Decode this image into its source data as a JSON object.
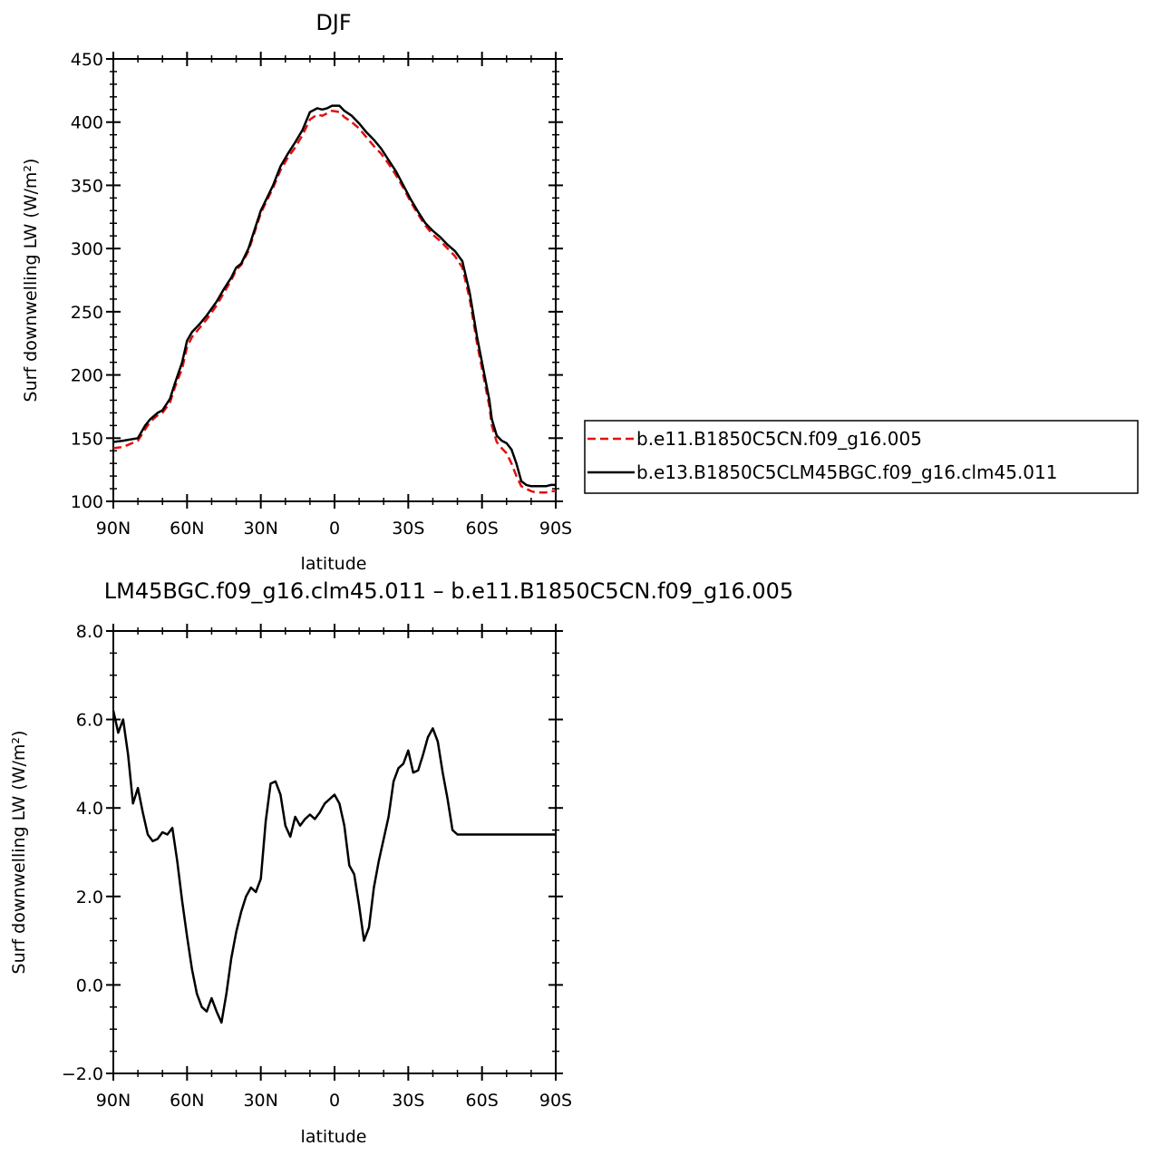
{
  "chart_data": [
    {
      "type": "line",
      "title": "DJF",
      "xlabel": "latitude",
      "ylabel": "Surf downwelling LW (W/m²)",
      "xlim": [
        90,
        -90
      ],
      "ylim": [
        100,
        450
      ],
      "yticks": [
        100,
        150,
        200,
        250,
        300,
        350,
        400,
        450
      ],
      "ytick_labels": [
        "100",
        "150",
        "200",
        "250",
        "300",
        "350",
        "400",
        "450"
      ],
      "xticks": [
        90,
        60,
        30,
        0,
        -30,
        -60,
        -90
      ],
      "xtick_labels": [
        "90N",
        "60N",
        "30N",
        "0",
        "30S",
        "60S",
        "90S"
      ],
      "legend_position": "right",
      "series": [
        {
          "name": "b.e11.B1850C5CN.f09_g16.005",
          "color": "#e01010",
          "dash": "dashed",
          "x": [
            90,
            86,
            80,
            77,
            75,
            72,
            70,
            67,
            65,
            62,
            60,
            58,
            55,
            52,
            48,
            45,
            42,
            40,
            38,
            35,
            33,
            30,
            28,
            25,
            22,
            19,
            16,
            13,
            10,
            7,
            5,
            3,
            1,
            -2,
            -4,
            -7,
            -10,
            -13,
            -16,
            -19,
            -22,
            -25,
            -28,
            -31,
            -34,
            -37,
            -40,
            -43,
            -46,
            -49,
            -52,
            -55,
            -58,
            -61,
            -63,
            -64,
            -66,
            -68,
            -70,
            -72,
            -74,
            -76,
            -78,
            -80,
            -82,
            -84,
            -86,
            -88,
            -90
          ],
          "values": [
            142,
            143,
            148,
            157,
            163,
            168,
            170,
            178,
            190,
            205,
            222,
            230,
            237,
            244,
            255,
            265,
            275,
            283,
            287,
            298,
            310,
            328,
            336,
            348,
            362,
            372,
            380,
            390,
            402,
            406,
            405,
            407,
            409,
            408,
            404,
            400,
            395,
            388,
            381,
            375,
            367,
            358,
            348,
            337,
            327,
            318,
            311,
            306,
            300,
            294,
            285,
            260,
            225,
            195,
            175,
            160,
            147,
            142,
            138,
            130,
            120,
            112,
            110,
            108,
            107,
            107,
            107,
            108,
            108
          ]
        },
        {
          "name": "b.e13.B1850C5CLM45BGC.f09_g16.clm45.011",
          "color": "#000000",
          "dash": "solid",
          "x": [
            90,
            86,
            80,
            77,
            75,
            72,
            70,
            67,
            65,
            62,
            60,
            58,
            55,
            52,
            48,
            45,
            42,
            40,
            38,
            35,
            33,
            30,
            28,
            25,
            22,
            19,
            16,
            13,
            10,
            7,
            5,
            3,
            1,
            -2,
            -4,
            -7,
            -10,
            -13,
            -16,
            -19,
            -22,
            -25,
            -28,
            -31,
            -34,
            -37,
            -40,
            -43,
            -46,
            -49,
            -52,
            -55,
            -58,
            -61,
            -63,
            -64,
            -66,
            -68,
            -70,
            -72,
            -74,
            -76,
            -78,
            -80,
            -82,
            -84,
            -86,
            -88,
            -90
          ],
          "values": [
            147,
            148,
            150,
            160,
            165,
            170,
            172,
            181,
            193,
            210,
            227,
            234,
            240,
            247,
            258,
            268,
            277,
            285,
            288,
            300,
            312,
            330,
            338,
            350,
            365,
            375,
            384,
            394,
            408,
            411,
            410,
            411,
            413,
            413,
            409,
            405,
            399,
            392,
            386,
            379,
            370,
            361,
            350,
            339,
            329,
            320,
            314,
            309,
            303,
            298,
            290,
            265,
            230,
            200,
            180,
            165,
            152,
            148,
            146,
            141,
            130,
            116,
            113,
            112,
            112,
            112,
            112,
            113,
            113
          ]
        }
      ]
    },
    {
      "type": "line",
      "title": "LM45BGC.f09_g16.clm45.011 – b.e11.B1850C5CN.f09_g16.005",
      "xlabel": "latitude",
      "ylabel": "Surf downwelling LW (W/m²)",
      "xlim": [
        90,
        -90
      ],
      "ylim": [
        -2.0,
        8.0
      ],
      "yticks": [
        -2.0,
        0.0,
        2.0,
        4.0,
        6.0,
        8.0
      ],
      "ytick_labels": [
        "−2.0",
        "0.0",
        "2.0",
        "4.0",
        "6.0",
        "8.0"
      ],
      "xticks": [
        90,
        60,
        30,
        0,
        -30,
        -60,
        -90
      ],
      "xtick_labels": [
        "90N",
        "60N",
        "30N",
        "0",
        "30S",
        "60S",
        "90S"
      ],
      "series": [
        {
          "name": "",
          "color": "#000000",
          "dash": "solid",
          "x": [
            90,
            88,
            86,
            84,
            82,
            80,
            78,
            76,
            74,
            72,
            70,
            68,
            66,
            64,
            62,
            60,
            58,
            56,
            54,
            52,
            50,
            48,
            46,
            44,
            42,
            40,
            38,
            36,
            34,
            32,
            30,
            28,
            26,
            24,
            22,
            20,
            18,
            16,
            14,
            12,
            10,
            8,
            6,
            4,
            2,
            0,
            -2,
            -4,
            -6,
            -8,
            -10,
            -12,
            -14,
            -16,
            -18,
            -20,
            -22,
            -24,
            -26,
            -28,
            -30,
            -32,
            -34,
            -36,
            -38,
            -40,
            -42,
            -44,
            -46,
            -48,
            -50,
            -52,
            -54,
            -56,
            -58,
            -60,
            -62,
            -64,
            -66,
            -68,
            -70,
            -72,
            -74,
            -76,
            -78,
            -80,
            -82,
            -84,
            -86,
            -88,
            -90
          ],
          "values": [
            6.2,
            5.7,
            6.0,
            5.2,
            4.1,
            4.45,
            3.9,
            3.4,
            3.25,
            3.3,
            3.45,
            3.4,
            3.55,
            2.8,
            1.9,
            1.1,
            0.35,
            -0.2,
            -0.5,
            -0.6,
            -0.3,
            -0.6,
            -0.85,
            -0.2,
            0.6,
            1.2,
            1.65,
            2.0,
            2.2,
            2.1,
            2.4,
            3.7,
            4.55,
            4.6,
            4.3,
            3.6,
            3.35,
            3.8,
            3.6,
            3.75,
            3.85,
            3.75,
            3.9,
            4.1,
            4.2,
            4.3,
            4.1,
            3.6,
            2.7,
            2.5,
            1.8,
            1.0,
            1.3,
            2.2,
            2.8,
            3.3,
            3.8,
            4.6,
            4.9,
            5.0,
            5.3,
            4.8,
            4.85,
            5.2,
            5.6,
            5.8,
            5.5,
            4.8,
            4.2,
            3.5,
            3.4,
            3.4,
            3.4,
            3.4,
            3.4,
            3.4,
            3.4,
            3.4,
            3.4,
            3.4,
            3.4,
            3.4,
            3.4,
            3.4,
            3.4,
            3.4,
            3.4,
            3.4,
            3.4,
            3.4,
            3.4
          ]
        }
      ]
    }
  ]
}
